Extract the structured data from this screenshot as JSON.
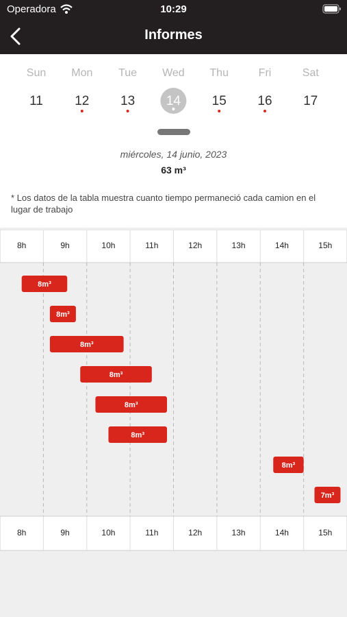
{
  "status_bar": {
    "carrier": "Operadora",
    "time": "10:29"
  },
  "header": {
    "title": "Informes"
  },
  "week": {
    "days": [
      {
        "name": "Sun",
        "date": "11",
        "dot": false
      },
      {
        "name": "Mon",
        "date": "12",
        "dot": true
      },
      {
        "name": "Tue",
        "date": "13",
        "dot": true
      },
      {
        "name": "Wed",
        "date": "14",
        "dot": true
      },
      {
        "name": "Thu",
        "date": "15",
        "dot": true
      },
      {
        "name": "Fri",
        "date": "16",
        "dot": true
      },
      {
        "name": "Sat",
        "date": "17",
        "dot": false
      }
    ],
    "selected": 3
  },
  "summary": {
    "date": "miércoles, 14 junio, 2023",
    "volume": "63 m³"
  },
  "note": "*  Los datos de la tabla muestra cuanto tiempo permaneció cada camion en el lugar de trabajo",
  "chart_data": {
    "type": "gantt",
    "color": "#d9261c",
    "xlim": [
      8,
      16
    ],
    "xticks": [
      {
        "value": 8,
        "label": "8h"
      },
      {
        "value": 9,
        "label": "9h"
      },
      {
        "value": 10,
        "label": "10h"
      },
      {
        "value": 11,
        "label": "11h"
      },
      {
        "value": 12,
        "label": "12h"
      },
      {
        "value": 13,
        "label": "13h"
      },
      {
        "value": 14,
        "label": "14h"
      },
      {
        "value": 15,
        "label": "15h"
      }
    ],
    "bars": [
      {
        "start": 8.5,
        "end": 9.55,
        "label": "8m³"
      },
      {
        "start": 9.15,
        "end": 9.75,
        "label": "8m³"
      },
      {
        "start": 9.15,
        "end": 10.85,
        "label": "8m³"
      },
      {
        "start": 9.85,
        "end": 11.5,
        "label": "8m³"
      },
      {
        "start": 10.2,
        "end": 11.85,
        "label": "8m³"
      },
      {
        "start": 10.5,
        "end": 11.85,
        "label": "8m³"
      },
      {
        "start": 14.3,
        "end": 15.0,
        "label": "8m³"
      },
      {
        "start": 15.25,
        "end": 15.85,
        "label": "7m³"
      }
    ]
  }
}
